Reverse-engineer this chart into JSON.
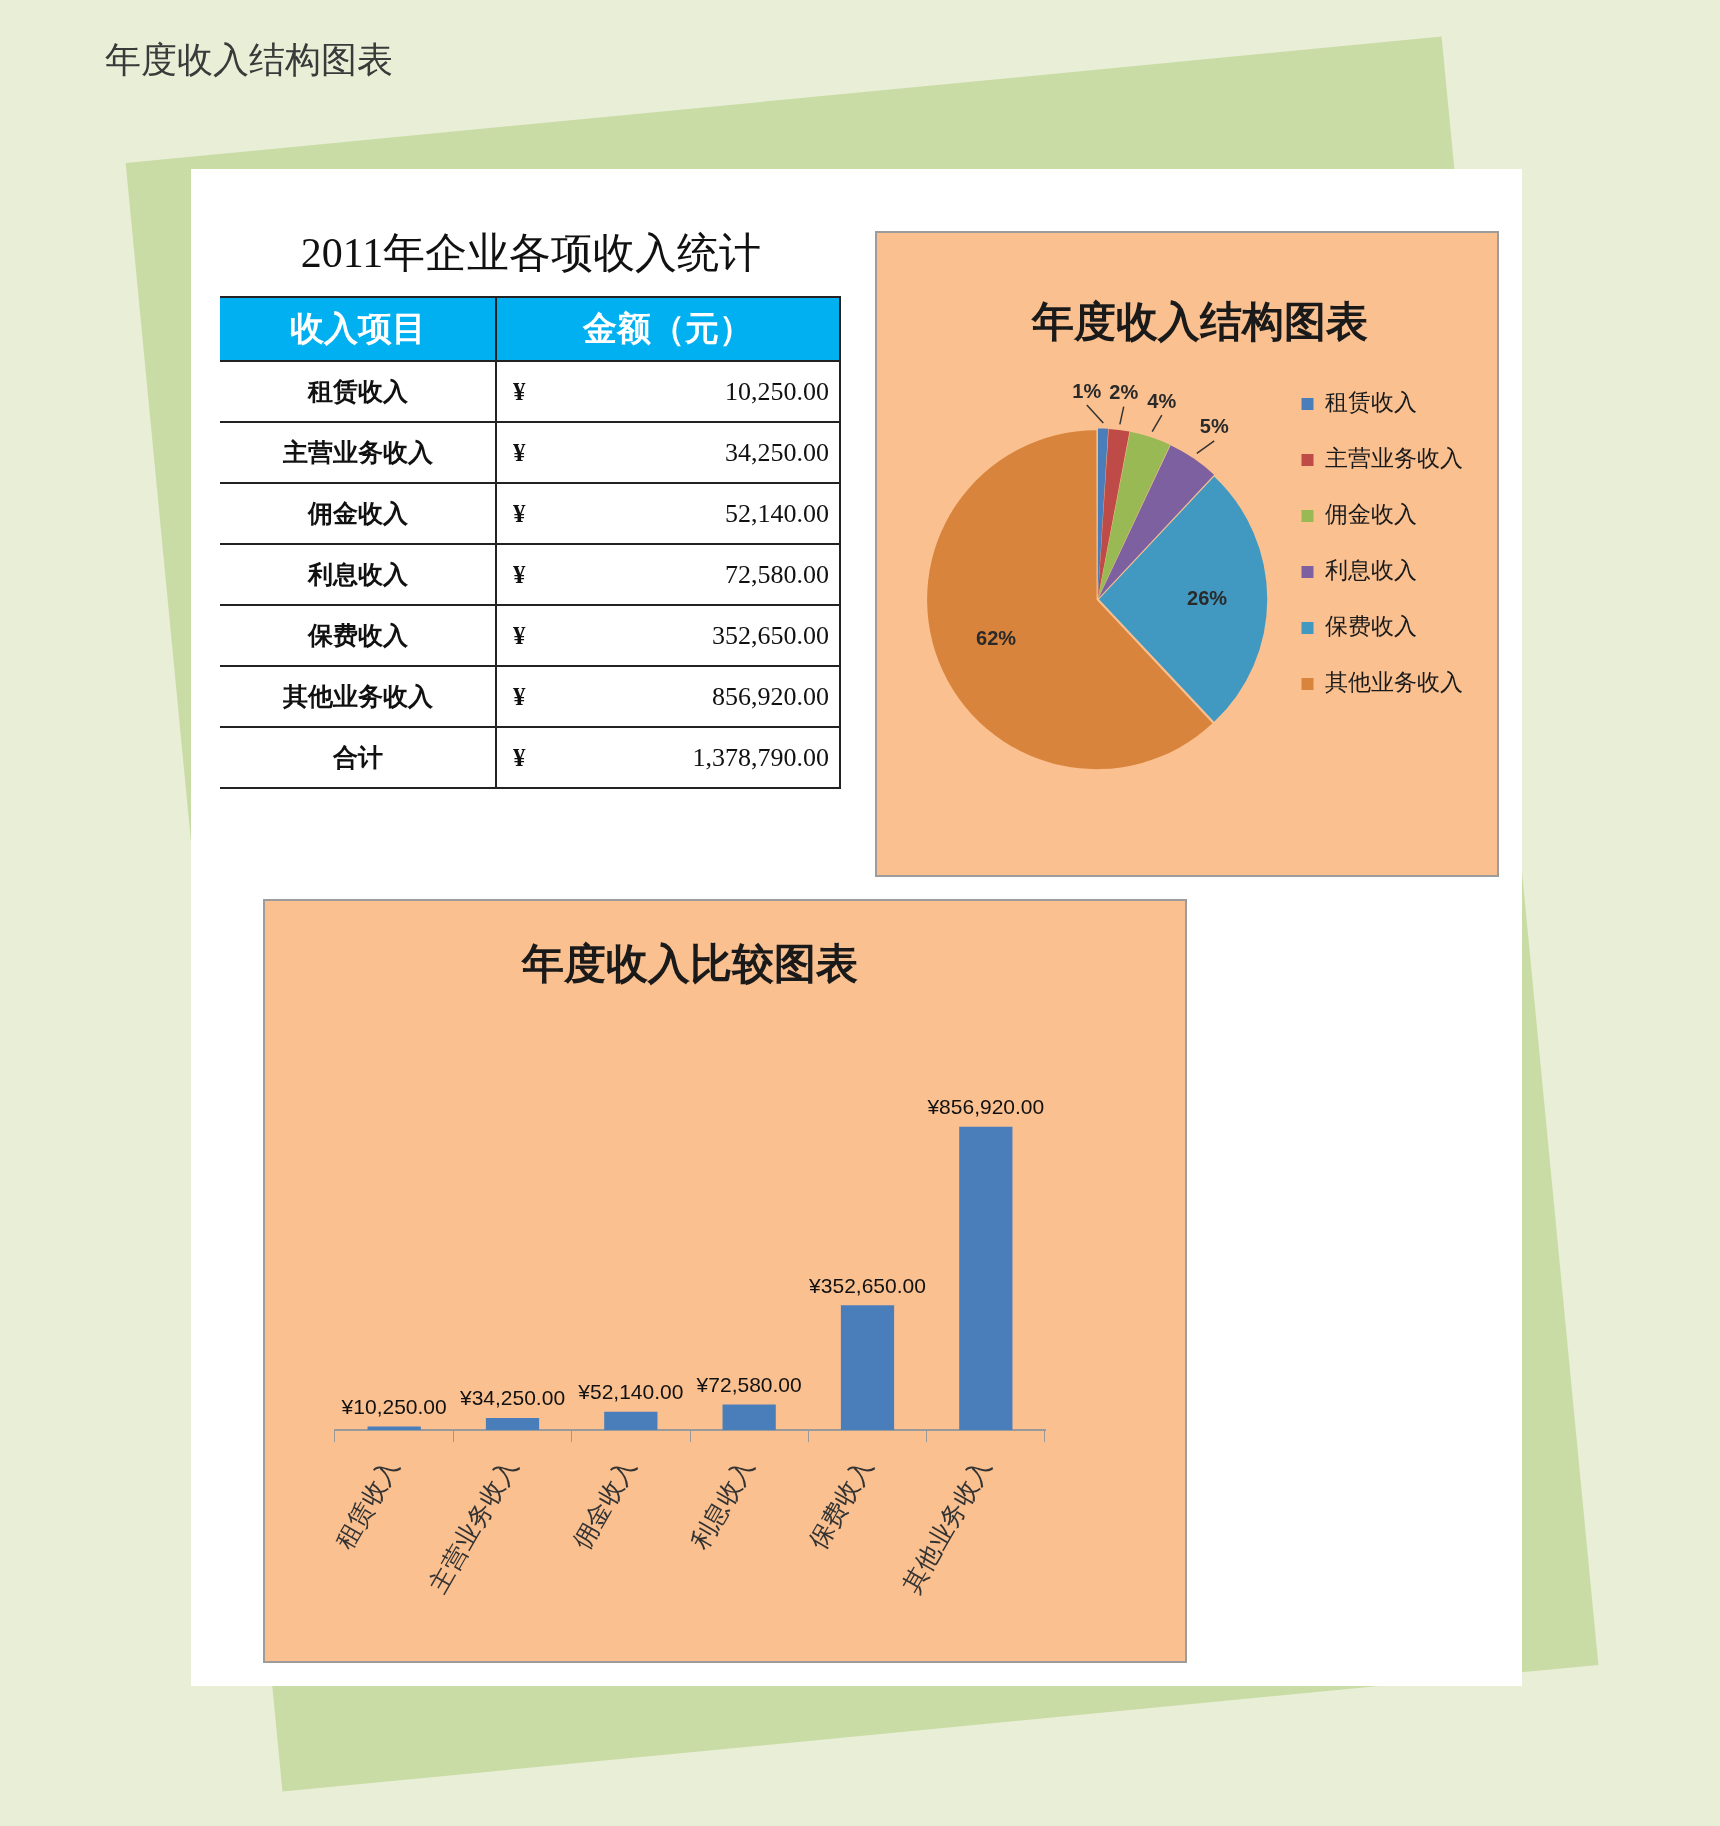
{
  "chart_data": [
    {
      "type": "other",
      "title": "年度收入结构图表"
    },
    {
      "type": "other",
      "title": "2011年企业各项收入统计",
      "xlabel": "收入项目",
      "ylabel": "金额（元）",
      "categories": [
        "租赁收入",
        "主营业务收入",
        "佣金收入",
        "利息收入",
        "保费收入",
        "其他业务收入",
        "合计"
      ],
      "value_labels": [
        "¥ 10,250.00",
        "¥ 34,250.00",
        "¥ 52,140.00",
        "¥ 72,580.00",
        "¥ 352,650.00",
        "¥ 856,920.00",
        "¥ 1,378,790.00"
      ]
    },
    {
      "type": "pie",
      "title": "年度收入结构图表",
      "categories": [
        "租赁收入",
        "主营业务收入",
        "佣金收入",
        "利息收入",
        "保费收入",
        "其他业务收入"
      ],
      "values": [
        1,
        2,
        4,
        5,
        26,
        62
      ],
      "colors": [
        "#4a7ebb",
        "#be4b48",
        "#98b954",
        "#7d60a0",
        "#4198c0",
        "#d9843c"
      ],
      "value_labels": [
        "1%",
        "2%",
        "4%",
        "5%",
        "26%",
        "62%"
      ],
      "legend": "right"
    },
    {
      "type": "bar",
      "title": "年度收入比较图表",
      "categories": [
        "租赁收入",
        "主营业务收入",
        "佣金收入",
        "利息收入",
        "保费收入",
        "其他业务收入"
      ],
      "values": [
        10250,
        34250,
        52140,
        72580,
        352650,
        856920
      ],
      "color": "#4a7ebb",
      "value_labels": [
        "¥10,250.00",
        "¥34,250.00",
        "¥52,140.00",
        "¥72,580.00",
        "¥352,650.00",
        "¥856,920.00"
      ],
      "tick_labels": "x"
    }
  ]
}
